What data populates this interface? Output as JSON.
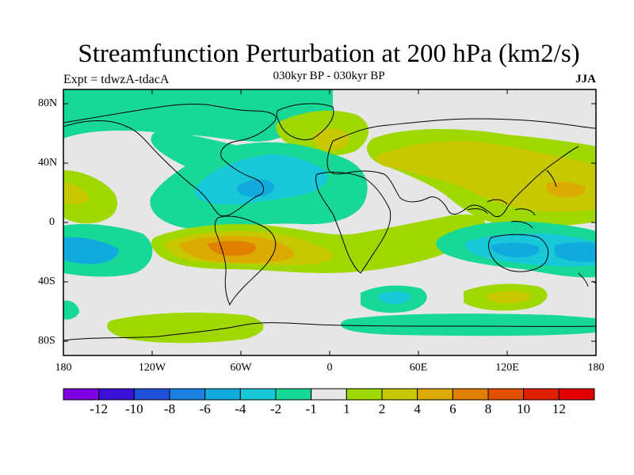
{
  "title": "Streamfunction Perturbation at 200 hPa (km2/s)",
  "subtitle_left": "Expt = tdwzA-tdacA",
  "subtitle_center": "030kyr BP - 030kyr BP",
  "subtitle_right": "JJA",
  "y_ticks": [
    "80N",
    "40N",
    "0",
    "40S",
    "80S"
  ],
  "x_ticks": [
    "180",
    "120W",
    "60W",
    "0",
    "60E",
    "120E",
    "180"
  ],
  "colorbar": {
    "labels": [
      "-12",
      "-10",
      "-8",
      "-6",
      "-4",
      "-2",
      "-1",
      "1",
      "2",
      "4",
      "6",
      "8",
      "10",
      "12"
    ],
    "colors": [
      "#7f00e0",
      "#3a10d8",
      "#1f50d8",
      "#1a7fe0",
      "#10aadd",
      "#18c8d8",
      "#18d897",
      "#e6e6e6",
      "#9fd800",
      "#c8c800",
      "#dcaa00",
      "#e07f00",
      "#e05000",
      "#e02000",
      "#e00000"
    ]
  },
  "map_colors": {
    "neutral": "#e6e6e6",
    "pos1": "#9fd800",
    "pos2": "#c8c800",
    "pos3": "#dcaa00",
    "pos4": "#e07f00",
    "neg1": "#18d897",
    "neg2": "#18c8d8",
    "neg3": "#10aadd",
    "neg4": "#1a7fe0"
  }
}
